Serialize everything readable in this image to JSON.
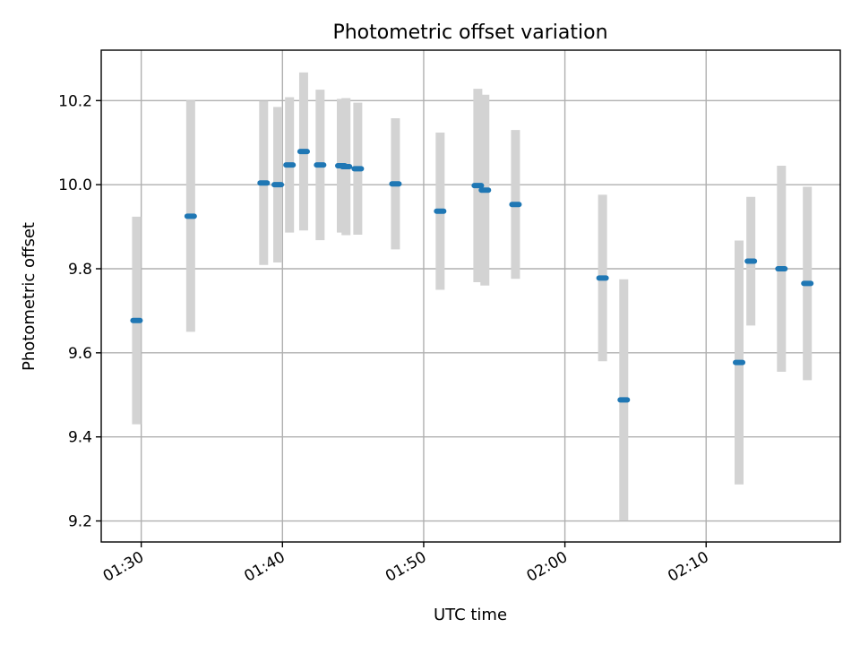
{
  "chart_data": {
    "type": "scatter",
    "title": "Photometric offset variation",
    "xlabel": "UTC time",
    "ylabel": "Photometric offset",
    "x_unit": "minutes after 01:00 UTC",
    "xlim": [
      "01:27:10",
      "02:19:30"
    ],
    "ylim": [
      9.15,
      10.32
    ],
    "xticks": [
      "01:30",
      "01:40",
      "01:50",
      "02:00",
      "02:10"
    ],
    "yticks": [
      9.2,
      9.4,
      9.6,
      9.8,
      10.0,
      10.2
    ],
    "ytick_labels": [
      "9.2",
      "9.4",
      "9.6",
      "9.8",
      "10.0",
      "10.2"
    ],
    "grid": true,
    "errorbar_color": "#d3d3d3",
    "marker_color": "#1f77b4",
    "points": [
      {
        "t": "01:29:40",
        "y": 9.677,
        "err": 0.247
      },
      {
        "t": "01:33:30",
        "y": 9.925,
        "err": 0.275
      },
      {
        "t": "01:38:40",
        "y": 10.004,
        "err": 0.195
      },
      {
        "t": "01:39:40",
        "y": 10.0,
        "err": 0.185
      },
      {
        "t": "01:40:30",
        "y": 10.047,
        "err": 0.161
      },
      {
        "t": "01:41:30",
        "y": 10.079,
        "err": 0.188
      },
      {
        "t": "01:42:40",
        "y": 10.047,
        "err": 0.179
      },
      {
        "t": "01:44:10",
        "y": 10.045,
        "err": 0.159
      },
      {
        "t": "01:44:30",
        "y": 10.043,
        "err": 0.163
      },
      {
        "t": "01:45:20",
        "y": 10.038,
        "err": 0.157
      },
      {
        "t": "01:48:00",
        "y": 10.002,
        "err": 0.156
      },
      {
        "t": "01:51:10",
        "y": 9.937,
        "err": 0.187
      },
      {
        "t": "01:53:50",
        "y": 9.998,
        "err": 0.23
      },
      {
        "t": "01:54:20",
        "y": 9.987,
        "err": 0.227
      },
      {
        "t": "01:56:30",
        "y": 9.953,
        "err": 0.177
      },
      {
        "t": "02:02:40",
        "y": 9.778,
        "err": 0.198
      },
      {
        "t": "02:04:10",
        "y": 9.488,
        "err": 0.287
      },
      {
        "t": "02:12:20",
        "y": 9.577,
        "err": 0.29
      },
      {
        "t": "02:13:10",
        "y": 9.818,
        "err": 0.153
      },
      {
        "t": "02:15:20",
        "y": 9.8,
        "err": 0.245
      },
      {
        "t": "02:17:10",
        "y": 9.765,
        "err": 0.23
      }
    ]
  }
}
